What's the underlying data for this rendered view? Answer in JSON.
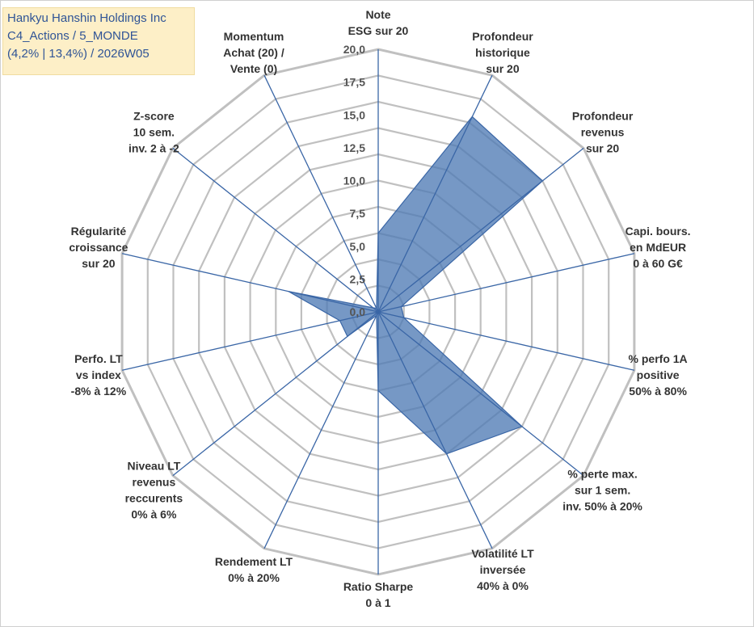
{
  "header": {
    "lines": [
      "Hankyu Hanshin Holdings Inc",
      "C4_Actions / 5_MONDE",
      "(4,2% | 13,4%) / 2026W05"
    ]
  },
  "chart_data": {
    "type": "radar",
    "rmin": 0,
    "rmax": 20,
    "ticks": [
      "0,0",
      "2,5",
      "5,0",
      "7,5",
      "10,0",
      "12,5",
      "15,0",
      "17,5",
      "20,0"
    ],
    "grid": true,
    "axes": [
      {
        "label": [
          "Note",
          "ESG sur 20"
        ],
        "value": 6.0
      },
      {
        "label": [
          "Profondeur",
          "historique",
          "sur 20"
        ],
        "value": 16.5
      },
      {
        "label": [
          "Profondeur",
          "revenus",
          "sur 20"
        ],
        "value": 16.0
      },
      {
        "label": [
          "Capi. bours.",
          "en MdEUR",
          "0 à 60 G€"
        ],
        "value": 1.8
      },
      {
        "label": [
          "% perfo 1A",
          "positive",
          "50% à 80%"
        ],
        "value": 2.0
      },
      {
        "label": [
          "% perte max.",
          "sur 1 sem.",
          "inv. 50% à 20%"
        ],
        "value": 14.0
      },
      {
        "label": [
          "Volatilité LT",
          "inversée",
          "40% à 0%"
        ],
        "value": 12.0
      },
      {
        "label": [
          "Ratio Sharpe",
          "0 à 1"
        ],
        "value": 6.0
      },
      {
        "label": [
          "Rendement LT",
          "0% à 20%"
        ],
        "value": 0.3
      },
      {
        "label": [
          "Niveau LT",
          "revenus",
          "reccurents",
          "0% à 6%"
        ],
        "value": 3.0
      },
      {
        "label": [
          "Perfo. LT",
          "vs index",
          "-8% à 12%"
        ],
        "value": 3.0
      },
      {
        "label": [
          "Régularité",
          "croissance",
          "sur 20"
        ],
        "value": 7.0
      },
      {
        "label": [
          "Z-score",
          "10 sem.",
          "inv. 2 à -2"
        ],
        "value": 0.5
      },
      {
        "label": [
          "Momentum",
          "Achat (20) /",
          "Vente (0)"
        ],
        "value": 0.3
      }
    ],
    "colors": {
      "fill": "#4f7bb5",
      "stroke": "#3a66a6",
      "grid": "#c0c0c0",
      "spoke": "#3a66a6"
    }
  }
}
